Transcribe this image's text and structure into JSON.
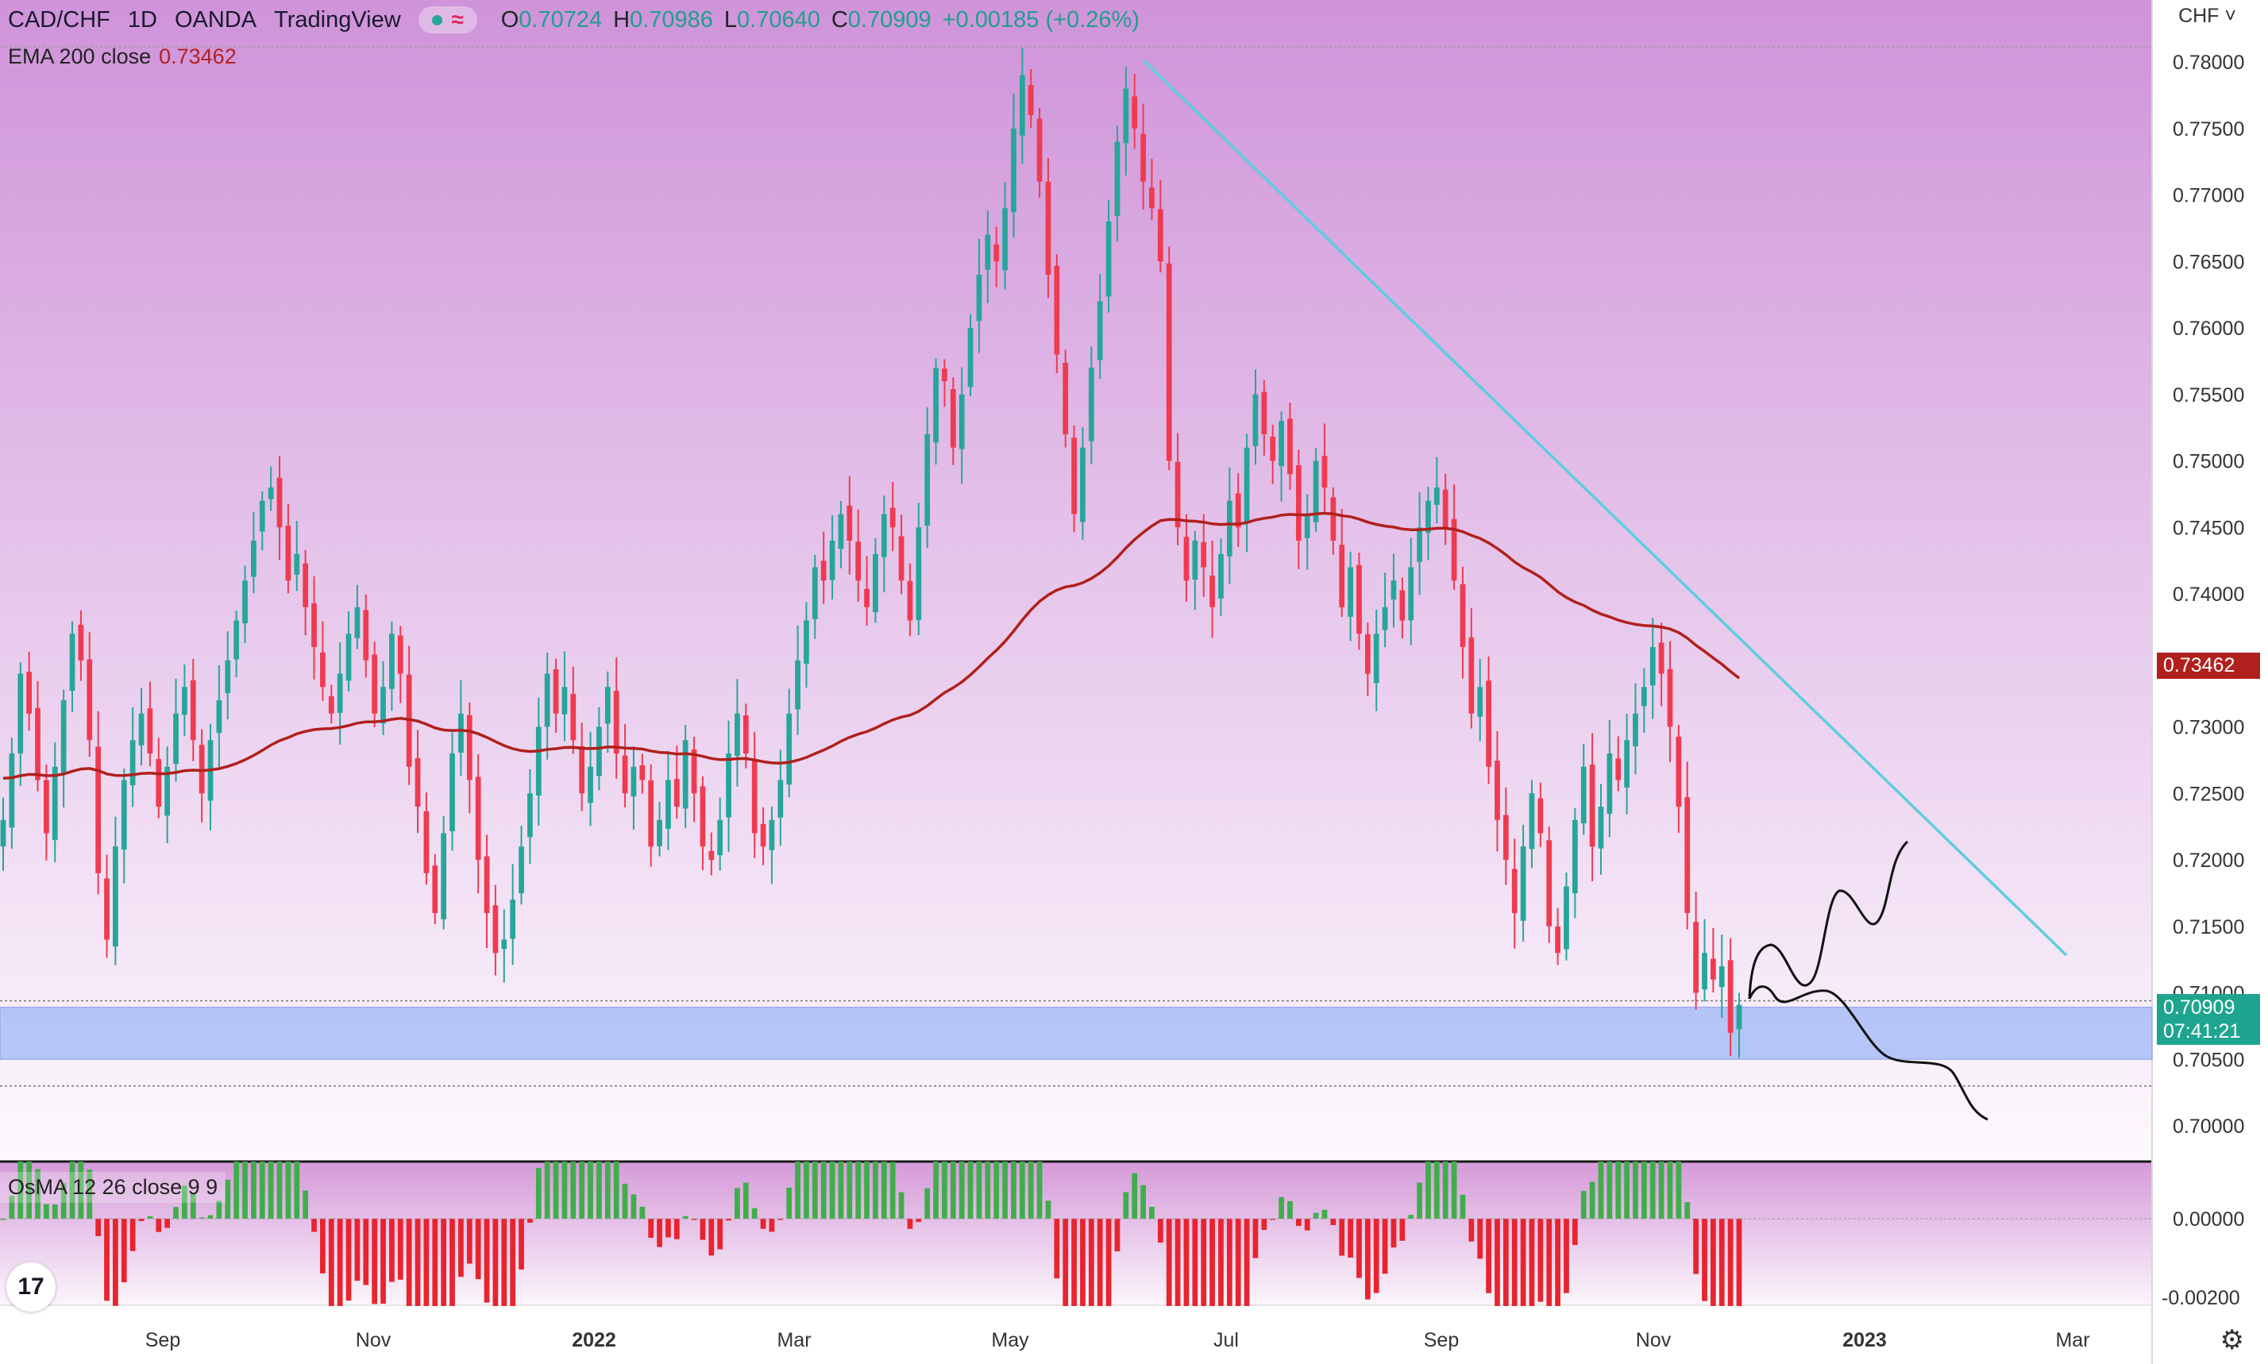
{
  "symbol": {
    "pair": "CAD/CHF",
    "interval": "1D",
    "broker": "OANDA",
    "platform": "TradingView",
    "ohlc": {
      "o_label": "O",
      "o": "0.70724",
      "h_label": "H",
      "h": "0.70986",
      "l_label": "L",
      "l": "0.70640",
      "c_label": "C",
      "c": "0.70909",
      "change": "+0.00185 (+0.26%)"
    }
  },
  "indicators": {
    "ema": {
      "label": "EMA 200 close",
      "value": "0.73462"
    },
    "osma": {
      "label": "OsMA 12 26 close 9 9"
    }
  },
  "currency_menu": "CHF",
  "price_badges": {
    "ema": "0.73462",
    "last": "0.70909",
    "countdown": "07:41:21"
  },
  "colors": {
    "bull": "#26a69a",
    "bear": "#ef3b50",
    "ema": "#b0201c",
    "trendline": "#5ecde0",
    "zone": "#a9bdf7",
    "osma_up": "#3fae4a",
    "osma_down": "#e8242e"
  },
  "icons": {
    "logo": "tradingview-logo-icon",
    "settings": "gear-icon",
    "status": "market-open-dot-icon",
    "replay": "wave-icon"
  },
  "chart_data": {
    "type": "candlestick",
    "ylim": [
      0.697,
      0.7815
    ],
    "yticks": [
      "0.78000",
      "0.77500",
      "0.77000",
      "0.76500",
      "0.76000",
      "0.75500",
      "0.75000",
      "0.74500",
      "0.74000",
      "0.73500",
      "0.73000",
      "0.72500",
      "0.72000",
      "0.71500",
      "0.71000",
      "0.70500",
      "0.70000"
    ],
    "xticks": [
      "Sep",
      "Nov",
      "2022",
      "Mar",
      "May",
      "Jul",
      "Sep",
      "Nov",
      "2023",
      "Mar"
    ],
    "osma_yticks": [
      "0.00000",
      "-0.00200"
    ],
    "closes": [
      0.723,
      0.728,
      0.734,
      0.731,
      0.726,
      0.722,
      0.727,
      0.732,
      0.737,
      0.735,
      0.729,
      0.719,
      0.714,
      0.721,
      0.726,
      0.729,
      0.731,
      0.728,
      0.724,
      0.727,
      0.731,
      0.733,
      0.729,
      0.725,
      0.729,
      0.732,
      0.735,
      0.738,
      0.741,
      0.744,
      0.747,
      0.748,
      0.745,
      0.741,
      0.743,
      0.739,
      0.736,
      0.733,
      0.731,
      0.734,
      0.737,
      0.739,
      0.735,
      0.731,
      0.733,
      0.737,
      0.734,
      0.727,
      0.724,
      0.719,
      0.716,
      0.722,
      0.728,
      0.731,
      0.726,
      0.72,
      0.716,
      0.713,
      0.714,
      0.717,
      0.721,
      0.725,
      0.73,
      0.734,
      0.731,
      0.733,
      0.729,
      0.725,
      0.727,
      0.73,
      0.733,
      0.728,
      0.725,
      0.727,
      0.726,
      0.721,
      0.723,
      0.726,
      0.724,
      0.729,
      0.725,
      0.721,
      0.72,
      0.723,
      0.728,
      0.731,
      0.728,
      0.722,
      0.721,
      0.723,
      0.726,
      0.731,
      0.735,
      0.738,
      0.742,
      0.741,
      0.744,
      0.746,
      0.744,
      0.741,
      0.739,
      0.743,
      0.746,
      0.745,
      0.741,
      0.738,
      0.745,
      0.752,
      0.757,
      0.756,
      0.751,
      0.755,
      0.76,
      0.764,
      0.767,
      0.765,
      0.769,
      0.775,
      0.779,
      0.776,
      0.771,
      0.764,
      0.758,
      0.752,
      0.746,
      0.751,
      0.757,
      0.762,
      0.768,
      0.774,
      0.778,
      0.775,
      0.771,
      0.769,
      0.765,
      0.75,
      0.745,
      0.741,
      0.744,
      0.742,
      0.739,
      0.743,
      0.747,
      0.745,
      0.751,
      0.755,
      0.752,
      0.75,
      0.753,
      0.749,
      0.744,
      0.746,
      0.75,
      0.748,
      0.744,
      0.739,
      0.742,
      0.737,
      0.734,
      0.737,
      0.739,
      0.741,
      0.738,
      0.742,
      0.745,
      0.747,
      0.748,
      0.745,
      0.741,
      0.736,
      0.731,
      0.733,
      0.727,
      0.723,
      0.72,
      0.716,
      0.721,
      0.725,
      0.722,
      0.715,
      0.713,
      0.718,
      0.723,
      0.727,
      0.721,
      0.724,
      0.728,
      0.726,
      0.729,
      0.731,
      0.733,
      0.736,
      0.734,
      0.73,
      0.724,
      0.716,
      0.71,
      0.713,
      0.711,
      0.712,
      0.707,
      0.7091
    ]
  }
}
